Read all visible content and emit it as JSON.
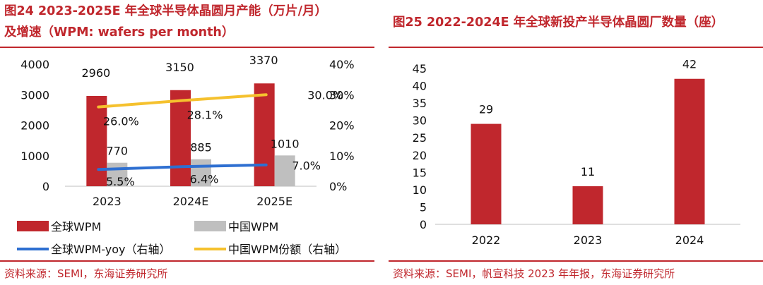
{
  "left": {
    "title_line1": "图24  2023-2025E 年全球半导体晶圆月产能（万片/月）",
    "title_line2": "及增速（WPM: wafers per month）",
    "source": "资料来源：SEMI，东海证券研究所"
  },
  "right": {
    "title": "图25  2022-2024E 年全球新投产半导体晶圆厂数量（座）",
    "source": "资料来源：SEMI，帆宣科技 2023 年年报，东海证券研究所"
  },
  "chart_data": [
    {
      "type": "bar",
      "categories": [
        "2023",
        "2024E",
        "2025E"
      ],
      "ylim": [
        0,
        4000
      ],
      "yticks": [
        0,
        1000,
        2000,
        3000,
        4000
      ],
      "y2lim": [
        0,
        40
      ],
      "y2ticks": [
        "0%",
        "10%",
        "20%",
        "30%",
        "40%"
      ],
      "series": [
        {
          "name": "全球WPM",
          "kind": "bar",
          "axis": "left",
          "color": "#c0272d",
          "values": [
            2960,
            3150,
            3370
          ],
          "labels": [
            "2960",
            "3150",
            "3370"
          ]
        },
        {
          "name": "中国WPM",
          "kind": "bar",
          "axis": "left",
          "color": "#bfbfbf",
          "values": [
            770,
            885,
            1010
          ],
          "labels": [
            "770",
            "885",
            "1010"
          ]
        },
        {
          "name": "全球WPM-yoy（右轴）",
          "kind": "line",
          "axis": "right",
          "color": "#2e6fd1",
          "values": [
            5.5,
            6.4,
            7.0
          ],
          "labels": [
            "5.5%",
            "6.4%",
            "7.0%"
          ]
        },
        {
          "name": "中国WPM份额（右轴）",
          "kind": "line",
          "axis": "right",
          "color": "#f5c12e",
          "values": [
            26.0,
            28.1,
            30.0
          ],
          "labels": [
            "26.0%",
            "28.1%",
            "30.0%"
          ]
        }
      ]
    },
    {
      "type": "bar",
      "categories": [
        "2022",
        "2023",
        "2024"
      ],
      "ylim": [
        0,
        45
      ],
      "yticks": [
        0,
        5,
        10,
        15,
        20,
        25,
        30,
        35,
        40,
        45
      ],
      "series": [
        {
          "color": "#c0272d",
          "values": [
            29,
            11,
            42
          ],
          "labels": [
            "29",
            "11",
            "42"
          ]
        }
      ]
    }
  ]
}
